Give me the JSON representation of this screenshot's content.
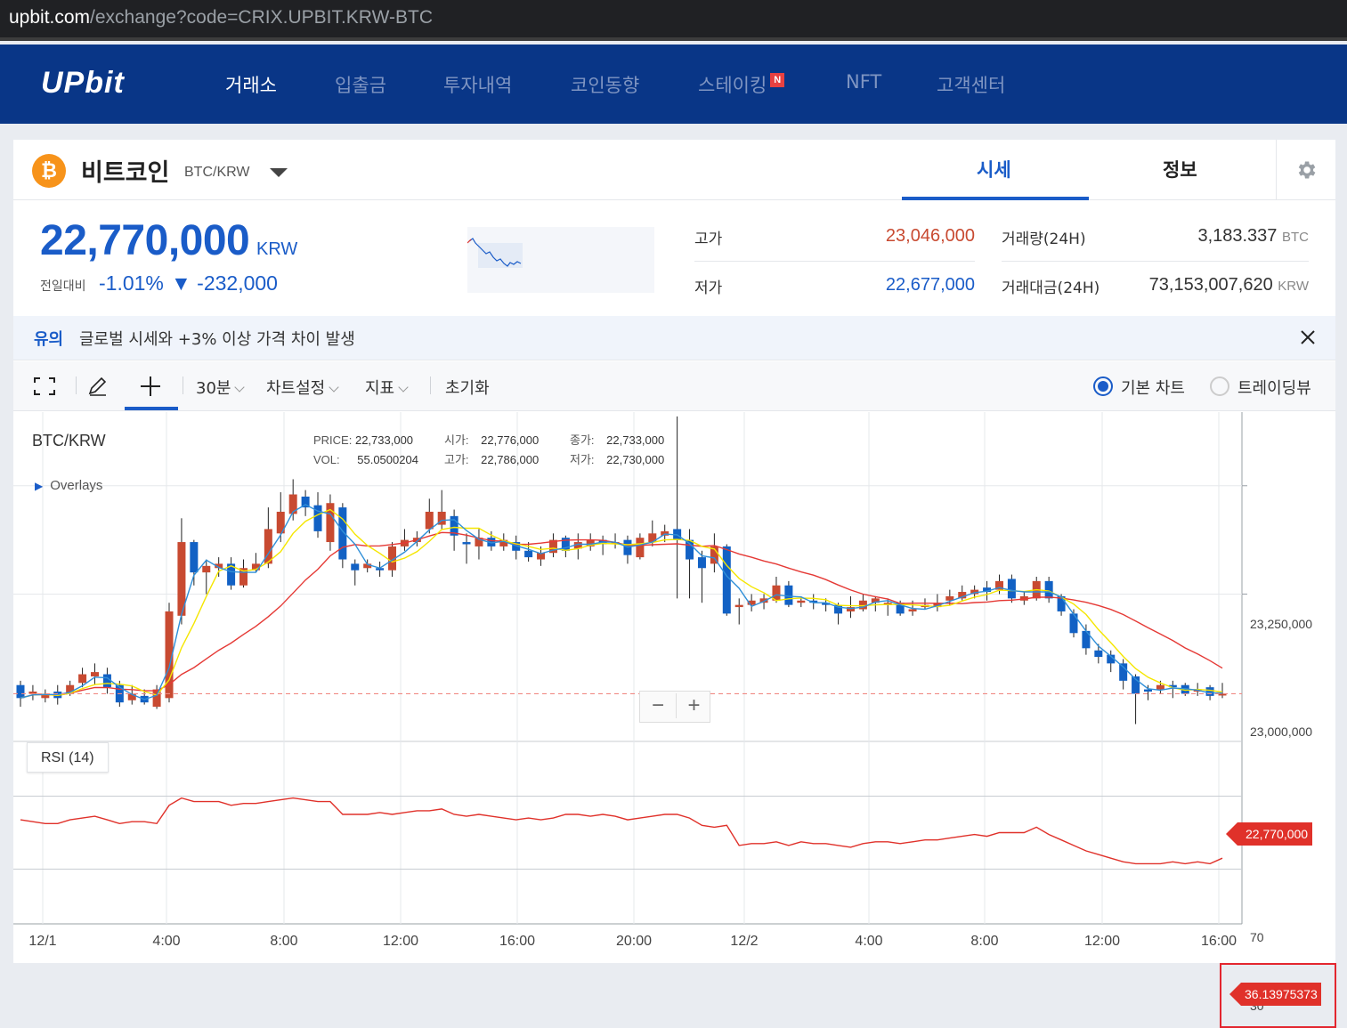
{
  "browser": {
    "url_host": "upbit.com",
    "url_path": "/exchange?code=CRIX.UPBIT.KRW-BTC"
  },
  "nav": {
    "logo": "UPbit",
    "items": [
      "거래소",
      "입출금",
      "투자내역",
      "코인동향",
      "스테이킹",
      "NFT",
      "고객센터"
    ],
    "active": "거래소",
    "new_badge": "N"
  },
  "coin": {
    "icon_glyph": "₿",
    "name": "비트코인",
    "pair": "BTC/KRW",
    "tabs": [
      "시세",
      "정보"
    ],
    "active_tab": "시세"
  },
  "price": {
    "current": "22,770,000",
    "unit": "KRW",
    "change_label": "전일대비",
    "change_rate": "-1.01%",
    "change_amount": "▼ -232,000"
  },
  "stats": {
    "high_label": "고가",
    "high": "23,046,000",
    "low_label": "저가",
    "low": "22,677,000",
    "volume_label": "거래량(24H)",
    "volume": "3,183.337",
    "volume_unit": "BTC",
    "value_label": "거래대금(24H)",
    "value": "73,153,007,620",
    "value_unit": "KRW"
  },
  "notice": {
    "tag": "유의",
    "text": "글로벌 시세와 +3% 이상 가격 차이 발생"
  },
  "toolbar": {
    "interval": "30분",
    "chart_settings": "차트설정",
    "indicators": "지표",
    "reset": "초기화",
    "radio_basic": "기본 차트",
    "radio_tv": "트레이딩뷰"
  },
  "chart_info": {
    "symbol": "BTC/KRW",
    "price_label": "PRICE:",
    "price": "22,733,000",
    "vol_label": "VOL:",
    "vol": "55.0500204",
    "open_label": "시가:",
    "open": "22,776,000",
    "high_label": "고가:",
    "high": "22,786,000",
    "close_label": "종가:",
    "close": "22,733,000",
    "low_label": "저가:",
    "low": "22,730,000",
    "overlays": "Overlays",
    "rsi_label": "RSI (14)",
    "zoom_minus": "−",
    "zoom_plus": "+",
    "last_price_tag": "22,770,000",
    "rsi_tag": "36.13975373"
  },
  "colors": {
    "up": "#c84a31",
    "down": "#1261c4",
    "accent": "#1a5cc8",
    "nav_bg": "#093687"
  },
  "chart_data": {
    "type": "candlestick",
    "price_axis": {
      "ticks": [
        "23,250,000",
        "23,000,000"
      ],
      "tick_values": [
        23250000,
        23000000
      ],
      "ylim": [
        22660000,
        23420000
      ]
    },
    "rsi_axis": {
      "ticks": [
        "70",
        "30"
      ],
      "tick_values": [
        70,
        30
      ],
      "ylim": [
        0,
        100
      ]
    },
    "time_ticks": [
      "12/1",
      "4:00",
      "8:00",
      "12:00",
      "16:00",
      "20:00",
      "12/2",
      "4:00",
      "8:00",
      "12:00",
      "16:00"
    ],
    "candles": [
      [
        22790,
        22760,
        22800,
        22740
      ],
      [
        22770,
        22775,
        22790,
        22755
      ],
      [
        22760,
        22770,
        22780,
        22750
      ],
      [
        22775,
        22760,
        22790,
        22745
      ],
      [
        22770,
        22790,
        22800,
        22765
      ],
      [
        22795,
        22815,
        22830,
        22785
      ],
      [
        22810,
        22820,
        22840,
        22790
      ],
      [
        22815,
        22785,
        22830,
        22770
      ],
      [
        22790,
        22750,
        22800,
        22740
      ],
      [
        22755,
        22770,
        22790,
        22745
      ],
      [
        22765,
        22750,
        22780,
        22745
      ],
      [
        22740,
        22780,
        22790,
        22735
      ],
      [
        22760,
        22960,
        22980,
        22750
      ],
      [
        22950,
        23120,
        23175,
        22930
      ],
      [
        23120,
        23050,
        23125,
        23020
      ],
      [
        23050,
        23065,
        23080,
        23000
      ],
      [
        23060,
        23070,
        23085,
        23040
      ],
      [
        23070,
        23020,
        23085,
        23010
      ],
      [
        23020,
        23060,
        23080,
        23015
      ],
      [
        23055,
        23070,
        23095,
        23050
      ],
      [
        23070,
        23150,
        23200,
        23060
      ],
      [
        23140,
        23190,
        23235,
        23120
      ],
      [
        23185,
        23230,
        23265,
        23170
      ],
      [
        23225,
        23200,
        23240,
        23180
      ],
      [
        23205,
        23145,
        23235,
        23130
      ],
      [
        23120,
        23210,
        23230,
        23100
      ],
      [
        23200,
        23080,
        23210,
        23060
      ],
      [
        23070,
        23055,
        23080,
        23020
      ],
      [
        23060,
        23070,
        23080,
        23050
      ],
      [
        23060,
        23055,
        23075,
        23040
      ],
      [
        23055,
        23110,
        23120,
        23040
      ],
      [
        23110,
        23125,
        23150,
        23100
      ],
      [
        23120,
        23130,
        23145,
        23110
      ],
      [
        23150,
        23190,
        23220,
        23140
      ],
      [
        23160,
        23190,
        23240,
        23150
      ],
      [
        23180,
        23135,
        23195,
        23100
      ],
      [
        23120,
        23115,
        23140,
        23070
      ],
      [
        23110,
        23130,
        23150,
        23080
      ],
      [
        23130,
        23110,
        23145,
        23100
      ],
      [
        23110,
        23125,
        23140,
        23100
      ],
      [
        23120,
        23100,
        23135,
        23080
      ],
      [
        23100,
        23085,
        23120,
        23075
      ],
      [
        23080,
        23095,
        23110,
        23065
      ],
      [
        23095,
        23125,
        23140,
        23085
      ],
      [
        23130,
        23100,
        23135,
        23085
      ],
      [
        23105,
        23120,
        23140,
        23080
      ],
      [
        23110,
        23125,
        23140,
        23100
      ],
      [
        23125,
        23115,
        23135,
        23090
      ],
      [
        23115,
        23120,
        23140,
        23105
      ],
      [
        23125,
        23090,
        23135,
        23070
      ],
      [
        23085,
        23130,
        23140,
        23080
      ],
      [
        23120,
        23140,
        23170,
        23110
      ],
      [
        23135,
        23145,
        23160,
        23120
      ],
      [
        23150,
        23125,
        23410,
        22990
      ],
      [
        23125,
        23080,
        23150,
        22990
      ],
      [
        23085,
        23060,
        23100,
        22980
      ],
      [
        23070,
        23110,
        23140,
        23050
      ],
      [
        23110,
        22955,
        23115,
        22950
      ],
      [
        22970,
        22975,
        22990,
        22930
      ],
      [
        22975,
        22985,
        23000,
        22960
      ],
      [
        22980,
        22990,
        23000,
        22965
      ],
      [
        22985,
        23020,
        23040,
        22980
      ],
      [
        23020,
        22975,
        23030,
        22970
      ],
      [
        22980,
        22985,
        22995,
        22970
      ],
      [
        22985,
        22980,
        23000,
        22965
      ],
      [
        22980,
        22975,
        22990,
        22960
      ],
      [
        22975,
        22955,
        22980,
        22930
      ],
      [
        22960,
        22970,
        22995,
        22945
      ],
      [
        22965,
        22985,
        23000,
        22960
      ],
      [
        22980,
        22990,
        22995,
        22960
      ],
      [
        22975,
        22980,
        22990,
        22950
      ],
      [
        22980,
        22955,
        22985,
        22950
      ],
      [
        22960,
        22965,
        22985,
        22950
      ],
      [
        22970,
        22975,
        22990,
        22965
      ],
      [
        22970,
        22980,
        23000,
        22960
      ],
      [
        22985,
        22995,
        23010,
        22975
      ],
      [
        22990,
        23005,
        23020,
        22985
      ],
      [
        23000,
        23010,
        23020,
        22990
      ],
      [
        23015,
        23005,
        23030,
        22985
      ],
      [
        23010,
        23030,
        23045,
        23000
      ],
      [
        23035,
        22990,
        23045,
        22980
      ],
      [
        22985,
        22995,
        23005,
        22975
      ],
      [
        22990,
        23030,
        23040,
        22985
      ],
      [
        23030,
        22990,
        23040,
        22980
      ],
      [
        22995,
        22960,
        23000,
        22950
      ],
      [
        22955,
        22910,
        22965,
        22900
      ],
      [
        22915,
        22875,
        22930,
        22860
      ],
      [
        22870,
        22855,
        22885,
        22840
      ],
      [
        22860,
        22840,
        22870,
        22820
      ],
      [
        22840,
        22800,
        22850,
        22780
      ],
      [
        22810,
        22770,
        22815,
        22700
      ],
      [
        22780,
        22775,
        22790,
        22755
      ],
      [
        22780,
        22790,
        22800,
        22770
      ],
      [
        22790,
        22785,
        22800,
        22760
      ],
      [
        22790,
        22770,
        22795,
        22765
      ],
      [
        22775,
        22780,
        22795,
        22765
      ],
      [
        22785,
        22765,
        22790,
        22755
      ],
      [
        22770,
        22770,
        22795,
        22760
      ]
    ],
    "rsi": [
      57,
      56,
      55,
      55,
      57,
      58,
      59,
      57,
      55,
      56,
      56,
      55,
      65,
      69,
      67,
      67,
      67,
      65,
      66,
      66,
      67,
      68,
      69,
      68,
      67,
      67,
      60,
      60,
      60,
      61,
      60,
      61,
      62,
      62,
      63,
      60,
      59,
      60,
      59,
      58,
      57,
      58,
      57,
      58,
      60,
      60,
      59,
      60,
      59,
      57,
      58,
      59,
      60,
      60,
      58,
      54,
      53,
      54,
      43,
      44,
      44,
      45,
      43,
      45,
      44,
      44,
      43,
      42,
      44,
      45,
      45,
      44,
      45,
      46,
      46,
      47,
      48,
      49,
      48,
      50,
      50,
      50,
      53,
      49,
      46,
      43,
      40,
      38,
      36,
      34,
      33,
      33,
      33,
      34,
      33,
      34,
      33,
      36
    ]
  }
}
